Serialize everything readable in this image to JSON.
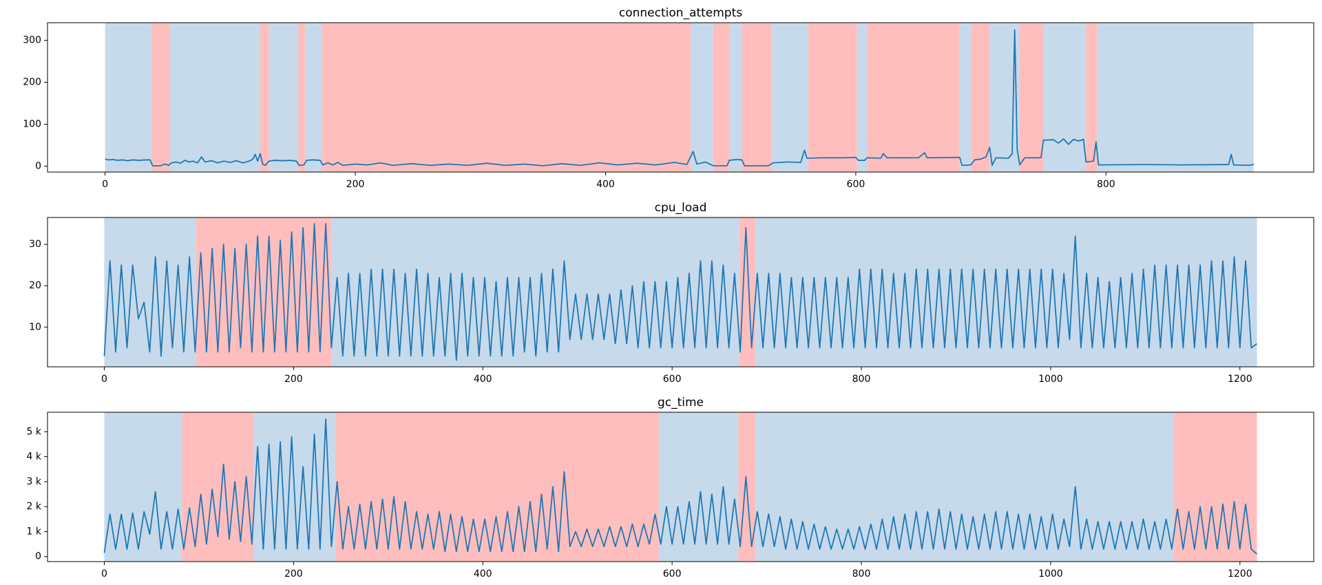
{
  "chart_data": [
    {
      "type": "line",
      "title": "connection_attempts",
      "color": "#1f77b4",
      "xlim": [
        -46,
        966
      ],
      "ylim": [
        -14,
        342
      ],
      "xticks": [
        0,
        200,
        400,
        600,
        800
      ],
      "yticks": [
        0,
        100,
        200,
        300
      ],
      "spans": [
        {
          "x": [
            0,
            37
          ],
          "color": "#c6daeb"
        },
        {
          "x": [
            37,
            52
          ],
          "color": "#ffbebe"
        },
        {
          "x": [
            52,
            124
          ],
          "color": "#c6daeb"
        },
        {
          "x": [
            124,
            131
          ],
          "color": "#ffbebe"
        },
        {
          "x": [
            131,
            154
          ],
          "color": "#c6daeb"
        },
        {
          "x": [
            154,
            160
          ],
          "color": "#ffbebe"
        },
        {
          "x": [
            160,
            173
          ],
          "color": "#c6daeb"
        },
        {
          "x": [
            173,
            468
          ],
          "color": "#ffbebe"
        },
        {
          "x": [
            468,
            486
          ],
          "color": "#c6daeb"
        },
        {
          "x": [
            486,
            499
          ],
          "color": "#ffbebe"
        },
        {
          "x": [
            499,
            509
          ],
          "color": "#c6daeb"
        },
        {
          "x": [
            509,
            533
          ],
          "color": "#ffbebe"
        },
        {
          "x": [
            533,
            562
          ],
          "color": "#c6daeb"
        },
        {
          "x": [
            562,
            601
          ],
          "color": "#ffbebe"
        },
        {
          "x": [
            601,
            609
          ],
          "color": "#c6daeb"
        },
        {
          "x": [
            609,
            683
          ],
          "color": "#ffbebe"
        },
        {
          "x": [
            683,
            692
          ],
          "color": "#c6daeb"
        },
        {
          "x": [
            692,
            707
          ],
          "color": "#ffbebe"
        },
        {
          "x": [
            707,
            731
          ],
          "color": "#c6daeb"
        },
        {
          "x": [
            731,
            750
          ],
          "color": "#ffbebe"
        },
        {
          "x": [
            750,
            784
          ],
          "color": "#c6daeb"
        },
        {
          "x": [
            784,
            793
          ],
          "color": "#ffbebe"
        },
        {
          "x": [
            793,
            918
          ],
          "color": "#c6daeb"
        }
      ],
      "x": [
        0,
        3,
        6,
        10,
        14,
        18,
        22,
        27,
        33,
        36,
        38,
        44,
        48,
        51,
        53,
        57,
        60,
        64,
        67,
        70,
        74,
        77,
        80,
        85,
        90,
        95,
        100,
        105,
        110,
        115,
        118,
        120,
        122,
        124,
        126,
        128,
        131,
        136,
        142,
        148,
        153,
        155,
        159,
        161,
        166,
        172,
        174,
        178,
        182,
        186,
        190,
        200,
        210,
        220,
        230,
        245,
        260,
        275,
        290,
        305,
        320,
        335,
        350,
        365,
        380,
        395,
        410,
        425,
        440,
        455,
        465,
        470,
        473,
        480,
        486,
        497,
        499,
        505,
        509,
        511,
        530,
        534,
        545,
        556,
        559,
        561,
        575,
        590,
        600,
        602,
        607,
        609,
        620,
        622,
        625,
        650,
        655,
        657,
        683,
        685,
        692,
        695,
        700,
        704,
        707,
        709,
        712,
        722,
        725,
        727,
        729,
        731,
        735,
        748,
        750,
        758,
        762,
        766,
        770,
        774,
        778,
        782,
        784,
        790,
        792,
        794,
        830,
        860,
        898,
        900,
        902,
        915,
        918
      ],
      "values": [
        17,
        15,
        16,
        14,
        15,
        13,
        15,
        14,
        15,
        15,
        1,
        1,
        5,
        2,
        8,
        10,
        7,
        14,
        10,
        12,
        8,
        22,
        10,
        13,
        8,
        12,
        9,
        13,
        8,
        12,
        16,
        28,
        12,
        30,
        5,
        2,
        12,
        14,
        13,
        14,
        12,
        2,
        3,
        14,
        15,
        14,
        3,
        8,
        3,
        9,
        2,
        5,
        3,
        8,
        2,
        6,
        2,
        5,
        2,
        7,
        2,
        5,
        1,
        6,
        2,
        8,
        3,
        7,
        3,
        9,
        4,
        35,
        5,
        10,
        1,
        1,
        14,
        16,
        15,
        1,
        1,
        8,
        10,
        9,
        38,
        19,
        20,
        20,
        21,
        14,
        14,
        20,
        19,
        30,
        20,
        20,
        32,
        20,
        21,
        2,
        3,
        15,
        17,
        22,
        45,
        2,
        20,
        19,
        30,
        325,
        40,
        3,
        20,
        20,
        62,
        63,
        55,
        65,
        52,
        64,
        60,
        64,
        10,
        12,
        58,
        3,
        4,
        3,
        4,
        28,
        3,
        2,
        5
      ]
    },
    {
      "type": "line",
      "title": "cpu_load",
      "color": "#1f77b4",
      "xlim": [
        -60,
        1278
      ],
      "ylim": [
        0.4,
        36.5
      ],
      "xticks": [
        0,
        200,
        400,
        600,
        800,
        1000,
        1200
      ],
      "yticks": [
        10,
        20,
        30
      ],
      "spans": [
        {
          "x": [
            0,
            97
          ],
          "color": "#c6daeb"
        },
        {
          "x": [
            97,
            240
          ],
          "color": "#ffbebe"
        },
        {
          "x": [
            240,
            671
          ],
          "color": "#c6daeb"
        },
        {
          "x": [
            671,
            688
          ],
          "color": "#ffbebe"
        },
        {
          "x": [
            688,
            1218
          ],
          "color": "#c6daeb"
        }
      ],
      "x": [
        0,
        6,
        12,
        18,
        24,
        30,
        36,
        42,
        48,
        54,
        60,
        66,
        72,
        78,
        84,
        90,
        96,
        102,
        108,
        114,
        120,
        126,
        132,
        138,
        144,
        150,
        156,
        162,
        168,
        174,
        180,
        186,
        192,
        198,
        204,
        210,
        216,
        222,
        228,
        234,
        240,
        246,
        252,
        258,
        264,
        270,
        276,
        282,
        288,
        294,
        300,
        306,
        312,
        318,
        324,
        330,
        336,
        342,
        348,
        354,
        360,
        366,
        372,
        378,
        384,
        390,
        396,
        402,
        408,
        414,
        420,
        426,
        432,
        438,
        444,
        450,
        456,
        462,
        468,
        474,
        480,
        486,
        492,
        498,
        504,
        510,
        516,
        522,
        528,
        534,
        540,
        546,
        552,
        558,
        564,
        570,
        576,
        582,
        588,
        594,
        600,
        606,
        612,
        618,
        624,
        630,
        636,
        642,
        648,
        654,
        660,
        666,
        672,
        678,
        684,
        690,
        696,
        702,
        708,
        714,
        720,
        726,
        732,
        738,
        744,
        750,
        756,
        762,
        768,
        774,
        780,
        786,
        792,
        798,
        804,
        810,
        816,
        822,
        828,
        834,
        840,
        846,
        852,
        858,
        864,
        870,
        876,
        882,
        888,
        894,
        900,
        906,
        912,
        918,
        924,
        930,
        936,
        942,
        948,
        954,
        960,
        966,
        972,
        978,
        984,
        990,
        996,
        1002,
        1008,
        1014,
        1020,
        1026,
        1032,
        1038,
        1044,
        1050,
        1056,
        1062,
        1068,
        1074,
        1080,
        1086,
        1092,
        1098,
        1104,
        1110,
        1116,
        1122,
        1128,
        1134,
        1140,
        1146,
        1152,
        1158,
        1164,
        1170,
        1176,
        1182,
        1188,
        1194,
        1200,
        1206,
        1212,
        1218
      ],
      "values": [
        3,
        26,
        4,
        25,
        5,
        25,
        12,
        16,
        4,
        27,
        3,
        26,
        5,
        25,
        4,
        27,
        4,
        28,
        4,
        29,
        4,
        30,
        4,
        29,
        5,
        30,
        4,
        32,
        4,
        32,
        4,
        31,
        4,
        33,
        4,
        34,
        4,
        35,
        4,
        35,
        5,
        22,
        3,
        23,
        3,
        23,
        3,
        24,
        3,
        24,
        3,
        24,
        3,
        23,
        3,
        24,
        3,
        23,
        3,
        22,
        3,
        23,
        2,
        23,
        3,
        22,
        3,
        22,
        3,
        21,
        3,
        22,
        3,
        22,
        4,
        22,
        3,
        23,
        4,
        24,
        4,
        26,
        7,
        18,
        7,
        18,
        7,
        18,
        7,
        18,
        6,
        19,
        6,
        20,
        5,
        21,
        5,
        21,
        5,
        21,
        5,
        22,
        5,
        23,
        5,
        26,
        5,
        26,
        5,
        25,
        5,
        23,
        4,
        34,
        5,
        23,
        5,
        23,
        5,
        23,
        5,
        22,
        5,
        22,
        5,
        22,
        5,
        22,
        5,
        22,
        5,
        22,
        5,
        24,
        5,
        24,
        5,
        24,
        5,
        23,
        5,
        23,
        5,
        24,
        5,
        24,
        5,
        24,
        5,
        24,
        5,
        24,
        5,
        24,
        5,
        24,
        5,
        24,
        5,
        24,
        5,
        24,
        5,
        24,
        5,
        24,
        5,
        24,
        5,
        23,
        7,
        32,
        5,
        23,
        5,
        22,
        5,
        21,
        5,
        22,
        5,
        23,
        5,
        24,
        5,
        25,
        5,
        25,
        5,
        25,
        5,
        25,
        5,
        25,
        5,
        26,
        5,
        26,
        5,
        27,
        5,
        26,
        5,
        6
      ]
    },
    {
      "type": "line",
      "title": "gc_time",
      "color": "#1f77b4",
      "xlim": [
        -60,
        1278
      ],
      "ylim": [
        -200,
        5780
      ],
      "xticks": [
        0,
        200,
        400,
        600,
        800,
        1000,
        1200
      ],
      "yticks": [
        0,
        {
          "value": 1000,
          "label": "1 k"
        },
        {
          "value": 2000,
          "label": "2 k"
        },
        {
          "value": 3000,
          "label": "3 k"
        },
        {
          "value": 4000,
          "label": "4 k"
        },
        {
          "value": 5000,
          "label": "5 k"
        }
      ],
      "spans": [
        {
          "x": [
            0,
            82
          ],
          "color": "#c6daeb"
        },
        {
          "x": [
            82,
            158
          ],
          "color": "#ffbebe"
        },
        {
          "x": [
            158,
            244
          ],
          "color": "#c6daeb"
        },
        {
          "x": [
            244,
            586
          ],
          "color": "#ffbebe"
        },
        {
          "x": [
            586,
            670
          ],
          "color": "#c6daeb"
        },
        {
          "x": [
            670,
            688
          ],
          "color": "#ffbebe"
        },
        {
          "x": [
            688,
            1130
          ],
          "color": "#c6daeb"
        },
        {
          "x": [
            1130,
            1218
          ],
          "color": "#ffbebe"
        }
      ],
      "x": [
        0,
        6,
        12,
        18,
        24,
        30,
        36,
        42,
        48,
        54,
        60,
        66,
        72,
        78,
        84,
        90,
        96,
        102,
        108,
        114,
        120,
        126,
        132,
        138,
        144,
        150,
        156,
        162,
        168,
        174,
        180,
        186,
        192,
        198,
        204,
        210,
        216,
        222,
        228,
        234,
        240,
        246,
        252,
        258,
        264,
        270,
        276,
        282,
        288,
        294,
        300,
        306,
        312,
        318,
        324,
        330,
        336,
        342,
        348,
        354,
        360,
        366,
        372,
        378,
        384,
        390,
        396,
        402,
        408,
        414,
        420,
        426,
        432,
        438,
        444,
        450,
        456,
        462,
        468,
        474,
        480,
        486,
        492,
        498,
        504,
        510,
        516,
        522,
        528,
        534,
        540,
        546,
        552,
        558,
        564,
        570,
        576,
        582,
        588,
        594,
        600,
        606,
        612,
        618,
        624,
        630,
        636,
        642,
        648,
        654,
        660,
        666,
        672,
        678,
        684,
        690,
        696,
        702,
        708,
        714,
        720,
        726,
        732,
        738,
        744,
        750,
        756,
        762,
        768,
        774,
        780,
        786,
        792,
        798,
        804,
        810,
        816,
        822,
        828,
        834,
        840,
        846,
        852,
        858,
        864,
        870,
        876,
        882,
        888,
        894,
        900,
        906,
        912,
        918,
        924,
        930,
        936,
        942,
        948,
        954,
        960,
        966,
        972,
        978,
        984,
        990,
        996,
        1002,
        1008,
        1014,
        1020,
        1026,
        1032,
        1038,
        1044,
        1050,
        1056,
        1062,
        1068,
        1074,
        1080,
        1086,
        1092,
        1098,
        1104,
        1110,
        1116,
        1122,
        1128,
        1134,
        1140,
        1146,
        1152,
        1158,
        1164,
        1170,
        1176,
        1182,
        1188,
        1194,
        1200,
        1206,
        1212,
        1218
      ],
      "values": [
        150,
        1700,
        300,
        1700,
        300,
        1750,
        300,
        1800,
        900,
        2600,
        300,
        1800,
        300,
        1900,
        300,
        1950,
        400,
        2500,
        500,
        2700,
        800,
        3700,
        700,
        3000,
        600,
        3200,
        500,
        4400,
        300,
        4500,
        300,
        4600,
        300,
        4800,
        300,
        3600,
        300,
        4900,
        300,
        5500,
        400,
        3000,
        300,
        2000,
        300,
        2100,
        300,
        2200,
        300,
        2300,
        300,
        2400,
        300,
        2200,
        300,
        1800,
        300,
        1700,
        300,
        1800,
        200,
        1700,
        200,
        1600,
        200,
        1500,
        200,
        1500,
        200,
        1600,
        200,
        1800,
        200,
        2000,
        200,
        2200,
        200,
        2500,
        300,
        2800,
        200,
        3400,
        400,
        1000,
        400,
        1100,
        400,
        1100,
        400,
        1200,
        400,
        1200,
        400,
        1300,
        400,
        1300,
        500,
        1700,
        500,
        2000,
        500,
        2000,
        500,
        2200,
        500,
        2600,
        500,
        2500,
        500,
        2800,
        500,
        2300,
        400,
        3200,
        400,
        1800,
        400,
        1700,
        400,
        1600,
        300,
        1500,
        300,
        1400,
        300,
        1300,
        300,
        1200,
        300,
        1100,
        300,
        1100,
        300,
        1200,
        300,
        1300,
        300,
        1500,
        300,
        1600,
        300,
        1700,
        300,
        1800,
        300,
        1800,
        300,
        1900,
        300,
        1800,
        300,
        1700,
        300,
        1600,
        300,
        1700,
        300,
        1800,
        300,
        1800,
        300,
        1700,
        300,
        1700,
        300,
        1600,
        300,
        1700,
        300,
        1500,
        400,
        2800,
        300,
        1500,
        300,
        1400,
        300,
        1400,
        300,
        1400,
        300,
        1400,
        300,
        1500,
        300,
        1400,
        300,
        1500,
        300,
        1900,
        300,
        1800,
        300,
        2000,
        300,
        2000,
        300,
        2100,
        300,
        2200,
        300,
        2100,
        300,
        100
      ]
    }
  ]
}
